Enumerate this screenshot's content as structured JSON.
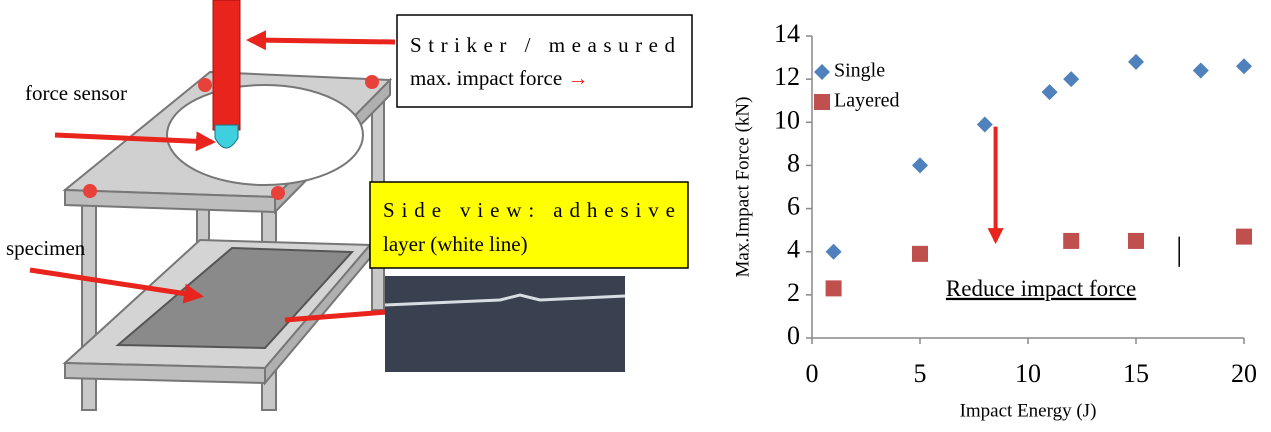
{
  "diagram": {
    "force_sensor_label": "force sensor",
    "specimen_label": "specimen",
    "striker_label": [
      "Striker / measured",
      "max. impact force"
    ],
    "striker_arrow": "→",
    "side_view_label": [
      "Side view: adhesive",
      "layer (white line)"
    ]
  },
  "chart_data": {
    "type": "scatter",
    "xlabel": "Impact Energy (J)",
    "ylabel": "Max.Impact  Force (kN)",
    "annotation": "Reduce impact force",
    "xlim": [
      0,
      20
    ],
    "xticks": [
      0,
      5,
      10,
      15,
      20
    ],
    "ylim": [
      0,
      14
    ],
    "yticks": [
      0,
      2,
      4,
      6,
      8,
      10,
      12,
      14
    ],
    "legend": "upper left",
    "series": [
      {
        "name": "Single",
        "color": "#4f81bd",
        "marker": "diamond",
        "x": [
          1,
          5,
          8,
          11,
          12,
          15,
          18,
          20
        ],
        "values": [
          4,
          8,
          9.9,
          11.4,
          12,
          12.8,
          12.4,
          12.6
        ]
      },
      {
        "name": "Layered",
        "color": "#c0504d",
        "marker": "square",
        "x": [
          1,
          5,
          12,
          15,
          20
        ],
        "values": [
          2.3,
          3.9,
          4.5,
          4.5,
          4.7
        ]
      }
    ]
  }
}
